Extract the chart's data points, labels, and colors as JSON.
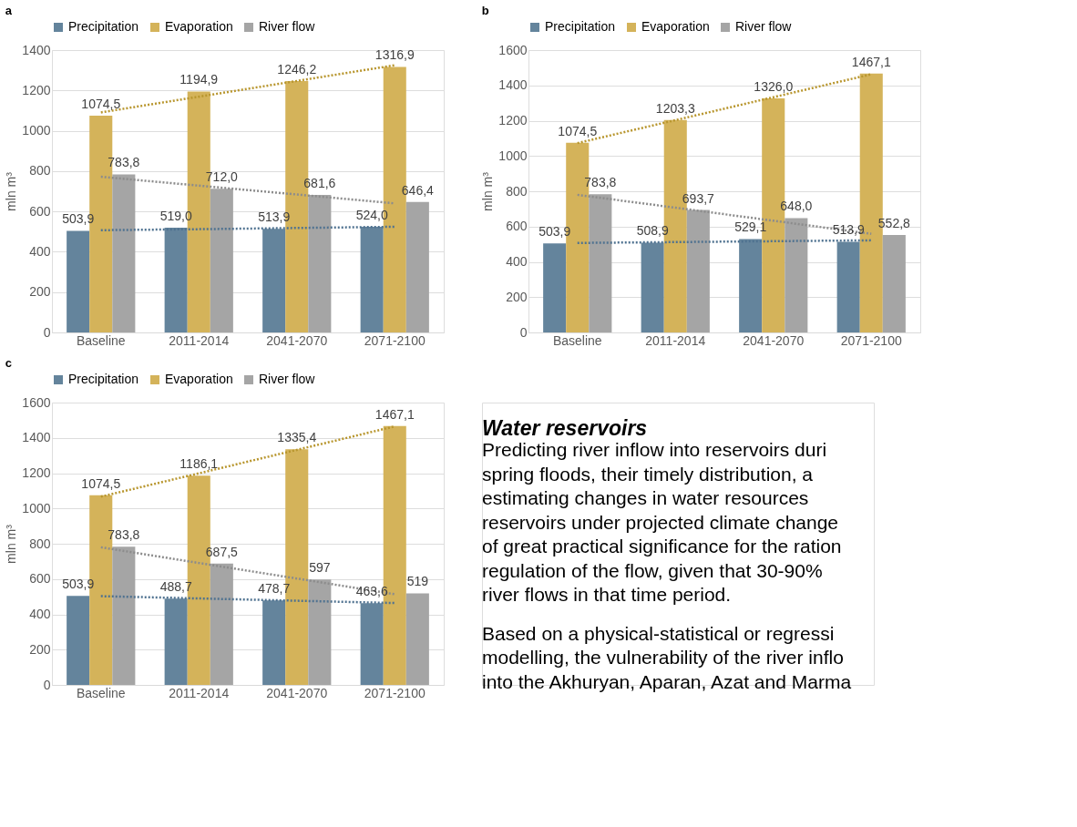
{
  "chart_data": [
    {
      "type": "bar",
      "title": "a",
      "ylabel": "mln m³",
      "categories": [
        "Baseline",
        "2011-2014",
        "2041-2070",
        "2071-2100"
      ],
      "ylim": [
        0,
        1400
      ],
      "yticks": [
        0,
        200,
        400,
        600,
        800,
        1000,
        1200,
        1400
      ],
      "grid": "y",
      "legend": "top",
      "series": [
        {
          "name": "Precipitation",
          "color": "#64849c",
          "values": [
            503.9,
            519.0,
            513.9,
            524.0
          ],
          "value_labels": [
            "503,9",
            "519,0",
            "513,9",
            "524,0"
          ]
        },
        {
          "name": "Evaporation",
          "color": "#d4b35a",
          "values": [
            1074.5,
            1194.9,
            1246.2,
            1316.9
          ],
          "value_labels": [
            "1074,5",
            "1194,9",
            "1246,2",
            "1316,9"
          ]
        },
        {
          "name": "River flow",
          "color": "#a5a5a5",
          "values": [
            783.8,
            712.0,
            681.6,
            646.4
          ],
          "value_labels": [
            "783,8",
            "712,0",
            "681,6",
            "646,4"
          ]
        },
        {
          "type": "line",
          "color": "#4f7290",
          "line_style": "dotted",
          "values": [
            507,
            512,
            518,
            524
          ]
        },
        {
          "type": "line",
          "color": "#b8962e",
          "line_style": "dotted",
          "values": [
            1091,
            1169,
            1247,
            1325
          ]
        },
        {
          "type": "line",
          "color": "#8c8c8c",
          "line_style": "dotted",
          "values": [
            772,
            728,
            684,
            640
          ]
        }
      ]
    },
    {
      "type": "bar",
      "title": "b",
      "ylabel": "mln m³",
      "categories": [
        "Baseline",
        "2011-2014",
        "2041-2070",
        "2071-2100"
      ],
      "ylim": [
        0,
        1600
      ],
      "yticks": [
        0,
        200,
        400,
        600,
        800,
        1000,
        1200,
        1400,
        1600
      ],
      "grid": "y",
      "legend": "top",
      "series": [
        {
          "name": "Precipitation",
          "color": "#64849c",
          "values": [
            503.9,
            508.9,
            529.1,
            513.9
          ],
          "value_labels": [
            "503,9",
            "508,9",
            "529,1",
            "513,9"
          ]
        },
        {
          "name": "Evaporation",
          "color": "#d4b35a",
          "values": [
            1074.5,
            1203.3,
            1326.0,
            1467.1
          ],
          "value_labels": [
            "1074,5",
            "1203,3",
            "1326,0",
            "1467,1"
          ]
        },
        {
          "name": "River flow",
          "color": "#a5a5a5",
          "values": [
            783.8,
            693.7,
            648.0,
            552.8
          ],
          "value_labels": [
            "783,8",
            "693,7",
            "648,0",
            "552,8"
          ]
        },
        {
          "type": "line",
          "color": "#4f7290",
          "line_style": "dotted",
          "values": [
            507,
            512,
            517,
            522
          ]
        },
        {
          "type": "line",
          "color": "#b8962e",
          "line_style": "dotted",
          "values": [
            1073,
            1203,
            1333,
            1463
          ]
        },
        {
          "type": "line",
          "color": "#8c8c8c",
          "line_style": "dotted",
          "values": [
            780,
            707,
            633,
            559
          ]
        }
      ]
    },
    {
      "type": "bar",
      "title": "c",
      "ylabel": "mln m³",
      "categories": [
        "Baseline",
        "2011-2014",
        "2041-2070",
        "2071-2100"
      ],
      "ylim": [
        0,
        1600
      ],
      "yticks": [
        0,
        200,
        400,
        600,
        800,
        1000,
        1200,
        1400,
        1600
      ],
      "grid": "y",
      "legend": "top",
      "series": [
        {
          "name": "Precipitation",
          "color": "#64849c",
          "values": [
            503.9,
            488.7,
            478.7,
            463.6
          ],
          "value_labels": [
            "503,9",
            "488,7",
            "478,7",
            "463,6"
          ]
        },
        {
          "name": "Evaporation",
          "color": "#d4b35a",
          "values": [
            1074.5,
            1186.1,
            1335.4,
            1467.1
          ],
          "value_labels": [
            "1074,5",
            "1186,1",
            "1335,4",
            "1467,1"
          ]
        },
        {
          "name": "River flow",
          "color": "#a5a5a5",
          "values": [
            783.8,
            687.5,
            597,
            519
          ],
          "value_labels": [
            "783,8",
            "687,5",
            "597",
            "519"
          ]
        },
        {
          "type": "line",
          "color": "#4f7290",
          "line_style": "dotted",
          "values": [
            503,
            490,
            477,
            464
          ]
        },
        {
          "type": "line",
          "color": "#b8962e",
          "line_style": "dotted",
          "values": [
            1067,
            1199,
            1332,
            1465
          ]
        },
        {
          "type": "line",
          "color": "#8c8c8c",
          "line_style": "dotted",
          "values": [
            780,
            691,
            603,
            514
          ]
        }
      ]
    },
    {
      "type": "other",
      "title": "Water reservoirs",
      "annotations": [
        "Predicting river inflow into reservoirs duri\nspring floods, their timely distribution, a\nestimating changes in water resources\nreservoirs under projected climate change\nof great practical significance for the ration\nregulation of the flow, given that 30-90%\nriver flows in that time period.",
        "Based on a physical-statistical or regressi\nmodelling, the vulnerability of the river inflo\ninto the Akhuryan, Aparan, Azat and Marma"
      ]
    }
  ]
}
